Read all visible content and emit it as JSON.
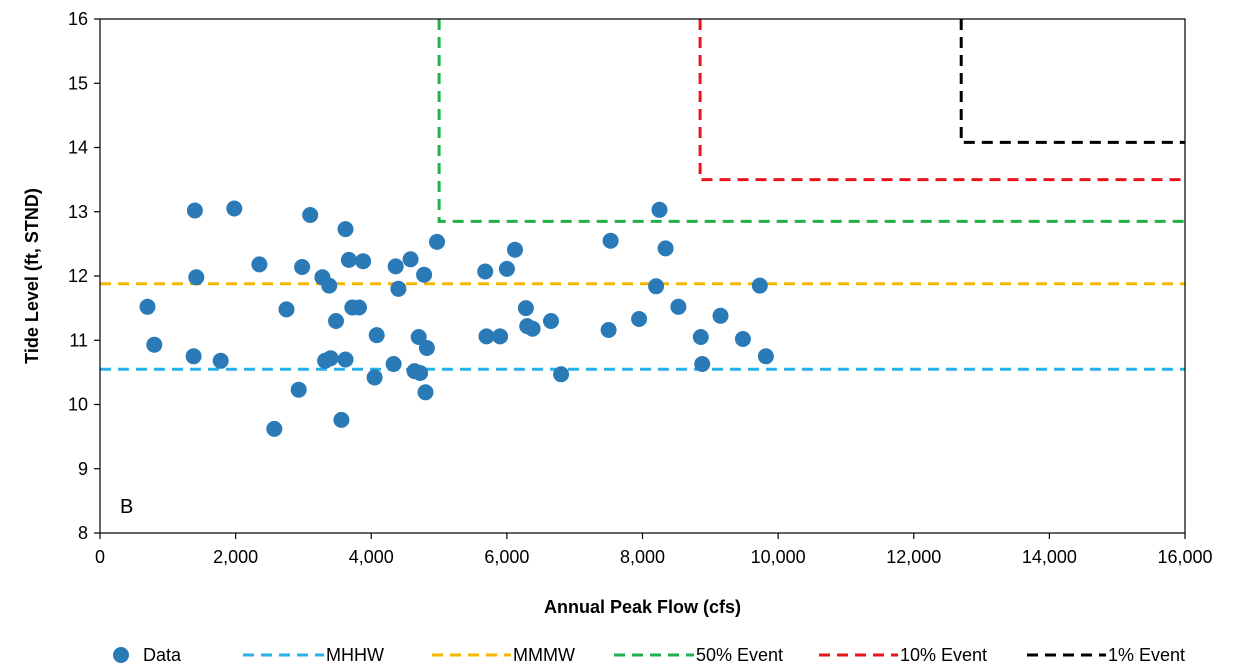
{
  "chart_data": {
    "type": "scatter",
    "panel_label": "B",
    "xlabel": "Annual Peak Flow (cfs)",
    "ylabel": "Tide Level (ft, STND)",
    "xlim": [
      0,
      16000
    ],
    "ylim": [
      8,
      16
    ],
    "x_ticks": [
      0,
      2000,
      4000,
      6000,
      8000,
      10000,
      12000,
      14000,
      16000
    ],
    "x_tick_labels": [
      "0",
      "2,000",
      "4,000",
      "6,000",
      "8,000",
      "10,000",
      "12,000",
      "14,000",
      "16,000"
    ],
    "y_ticks": [
      8,
      9,
      10,
      11,
      12,
      13,
      14,
      15,
      16
    ],
    "y_tick_labels": [
      "8",
      "9",
      "10",
      "11",
      "12",
      "13",
      "14",
      "15",
      "16"
    ],
    "grid": false,
    "legend_position": "bottom",
    "colors": {
      "Data": "#2a7ab8",
      "MHHW": "#2ab1e8",
      "MMMW": "#f5b800",
      "50% Event": "#22b04a",
      "10% Event": "#e8151b",
      "1% Event": "#000000"
    },
    "series": [
      {
        "name": "Data",
        "kind": "scatter",
        "points": [
          [
            700,
            11.52
          ],
          [
            800,
            10.93
          ],
          [
            1380,
            10.75
          ],
          [
            1400,
            13.02
          ],
          [
            1420,
            11.98
          ],
          [
            1780,
            10.68
          ],
          [
            1980,
            13.05
          ],
          [
            2350,
            12.18
          ],
          [
            2570,
            9.62
          ],
          [
            2750,
            11.48
          ],
          [
            2930,
            10.23
          ],
          [
            2980,
            12.14
          ],
          [
            3100,
            12.95
          ],
          [
            3280,
            11.98
          ],
          [
            3320,
            10.68
          ],
          [
            3380,
            11.85
          ],
          [
            3400,
            10.72
          ],
          [
            3480,
            11.3
          ],
          [
            3560,
            9.76
          ],
          [
            3620,
            12.73
          ],
          [
            3620,
            10.7
          ],
          [
            3670,
            12.25
          ],
          [
            3720,
            11.51
          ],
          [
            3820,
            11.51
          ],
          [
            3880,
            12.23
          ],
          [
            4050,
            10.42
          ],
          [
            4080,
            11.08
          ],
          [
            4330,
            10.63
          ],
          [
            4360,
            12.15
          ],
          [
            4400,
            11.8
          ],
          [
            4580,
            12.26
          ],
          [
            4640,
            10.52
          ],
          [
            4700,
            11.05
          ],
          [
            4720,
            10.49
          ],
          [
            4780,
            12.02
          ],
          [
            4800,
            10.19
          ],
          [
            4820,
            10.88
          ],
          [
            4970,
            12.53
          ],
          [
            5680,
            12.07
          ],
          [
            5700,
            11.06
          ],
          [
            5900,
            11.06
          ],
          [
            6000,
            12.11
          ],
          [
            6120,
            12.41
          ],
          [
            6280,
            11.5
          ],
          [
            6300,
            11.22
          ],
          [
            6380,
            11.18
          ],
          [
            6650,
            11.3
          ],
          [
            6800,
            10.47
          ],
          [
            7500,
            11.16
          ],
          [
            7530,
            12.55
          ],
          [
            7950,
            11.33
          ],
          [
            8200,
            11.84
          ],
          [
            8250,
            13.03
          ],
          [
            8340,
            12.43
          ],
          [
            8530,
            11.52
          ],
          [
            8860,
            11.05
          ],
          [
            8880,
            10.63
          ],
          [
            9150,
            11.38
          ],
          [
            9480,
            11.02
          ],
          [
            9730,
            11.85
          ],
          [
            9820,
            10.75
          ]
        ]
      },
      {
        "name": "MHHW",
        "kind": "line",
        "points": [
          [
            0,
            10.55
          ],
          [
            16000,
            10.55
          ]
        ]
      },
      {
        "name": "MMMW",
        "kind": "line",
        "points": [
          [
            0,
            11.88
          ],
          [
            16000,
            11.88
          ]
        ]
      },
      {
        "name": "50% Event",
        "kind": "line",
        "points": [
          [
            5000,
            16
          ],
          [
            5000,
            12.85
          ],
          [
            16000,
            12.85
          ]
        ]
      },
      {
        "name": "10% Event",
        "kind": "line",
        "points": [
          [
            8850,
            16
          ],
          [
            8850,
            13.5
          ],
          [
            16000,
            13.5
          ]
        ]
      },
      {
        "name": "1% Event",
        "kind": "line",
        "points": [
          [
            12700,
            16
          ],
          [
            12700,
            14.08
          ],
          [
            16000,
            14.08
          ]
        ]
      }
    ],
    "legend": [
      "Data",
      "MHHW",
      "MMMW",
      "50% Event",
      "10% Event",
      "1% Event"
    ]
  }
}
